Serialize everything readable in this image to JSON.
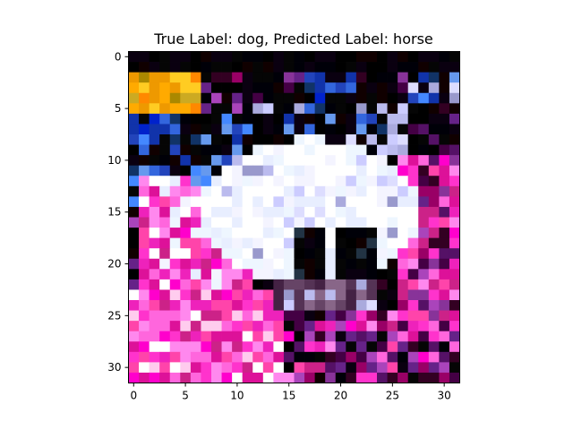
{
  "figure": {
    "title": "True Label: dog, Predicted Label: horse",
    "image_description_icon": "cifar-pixel-image",
    "x_ticks": [
      "0",
      "5",
      "10",
      "15",
      "20",
      "25",
      "30"
    ],
    "y_ticks": [
      "0",
      "5",
      "10",
      "15",
      "20",
      "25",
      "30"
    ],
    "grid_size": [
      32,
      32
    ]
  }
}
